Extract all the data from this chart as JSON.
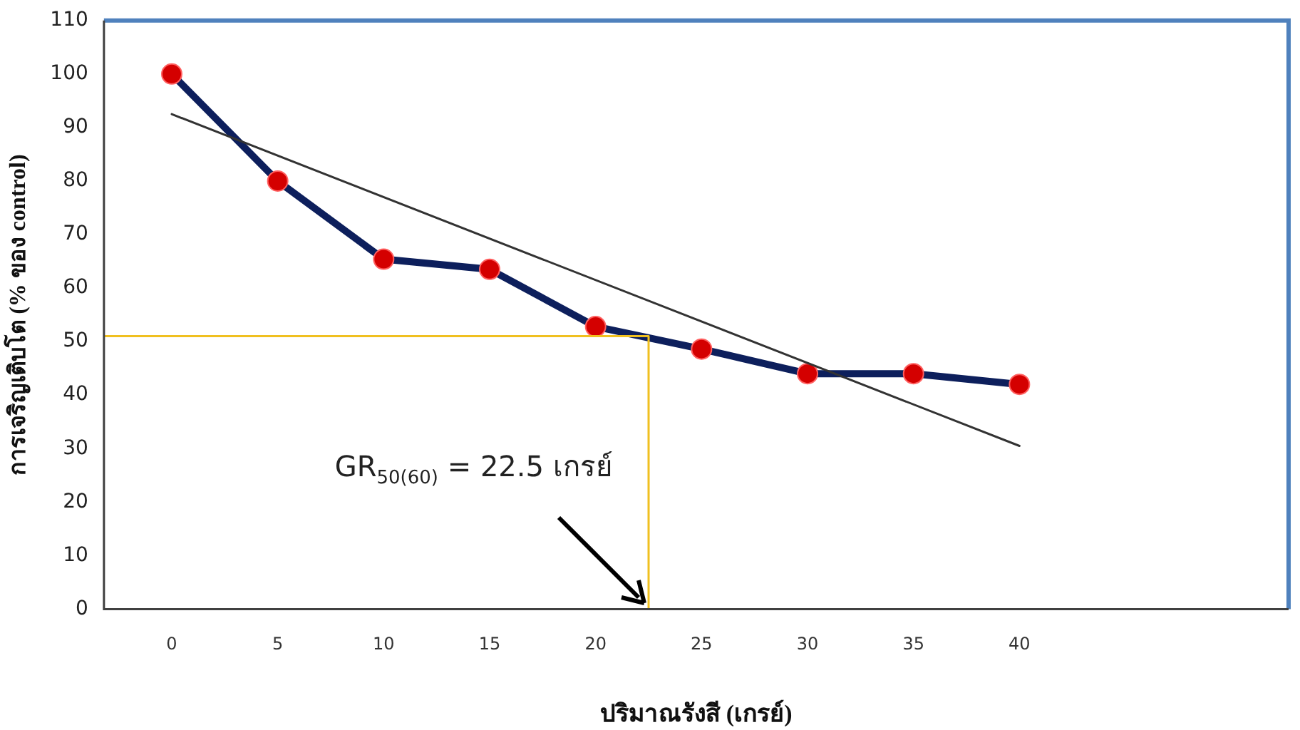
{
  "chart_data": {
    "type": "line",
    "xlabel": "ปริมาณรังสี (เกรย์)",
    "ylabel": "การเจริญเติบโต (% ของ control)",
    "x": [
      0,
      5,
      10,
      15,
      20,
      25,
      30,
      35,
      40
    ],
    "series": [
      {
        "color": "#0d1f5c",
        "values": [
          100,
          80,
          65.4,
          63.5,
          52.8,
          48.6,
          44,
          44,
          42
        ],
        "marker": "circle",
        "line_style": "solid"
      },
      {
        "type": "line",
        "x": [
          0,
          40
        ],
        "color": "#333333",
        "values": [
          92.5,
          30.5
        ],
        "marker": "none",
        "line_style": "solid"
      },
      {
        "type": "line",
        "x": [
          -3.2,
          22.5,
          22.5
        ],
        "color": "#f0c020",
        "values": [
          51,
          51,
          0
        ],
        "marker": "none",
        "line_style": "solid"
      }
    ],
    "xlim": [
      -3.2,
      52.7
    ],
    "xticks": [
      0,
      5,
      10,
      15,
      20,
      25,
      30,
      35,
      40
    ],
    "ylim": [
      0,
      110
    ],
    "yticks": [
      0,
      10,
      20,
      30,
      40,
      50,
      60,
      70,
      80,
      90,
      100,
      110
    ],
    "grid": false,
    "legend": false,
    "annotations": [
      "GR$_{50(60)}$ = 22.5 เกรย์"
    ]
  }
}
